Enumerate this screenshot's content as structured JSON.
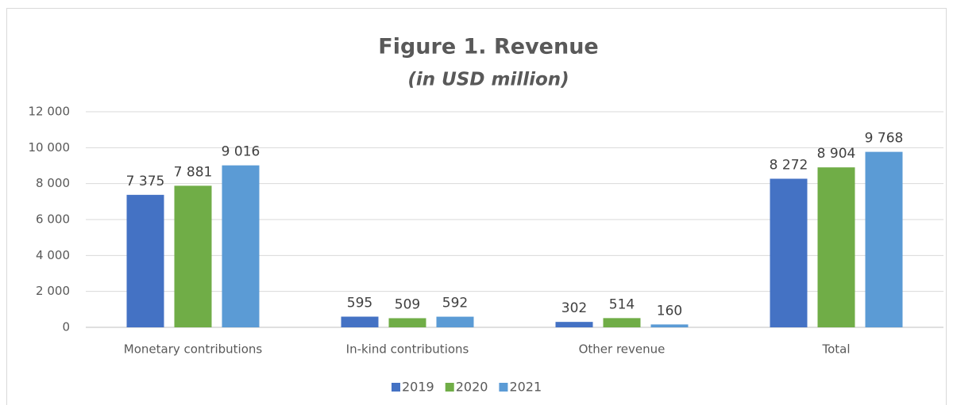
{
  "chart_data": {
    "type": "bar",
    "title": "Figure 1. Revenue",
    "subtitle": "(in USD million)",
    "categories": [
      "Monetary contributions",
      "In-kind contributions",
      "Other revenue",
      "Total"
    ],
    "series": [
      {
        "name": "2019",
        "color": "#4472c4",
        "values": [
          7375,
          595,
          302,
          8272
        ],
        "value_labels": [
          "7 375",
          "595",
          "302",
          "8 272"
        ]
      },
      {
        "name": "2020",
        "color": "#70ad47",
        "values": [
          7881,
          509,
          514,
          8904
        ],
        "value_labels": [
          "7 881",
          "509",
          "514",
          "8 904"
        ]
      },
      {
        "name": "2021",
        "color": "#5b9bd5",
        "values": [
          9016,
          592,
          160,
          9768
        ],
        "value_labels": [
          "9 016",
          "592",
          "160",
          "9 768"
        ]
      }
    ],
    "ylim": [
      0,
      12000
    ],
    "yticks": [
      0,
      {
        "value": 2000,
        "label": "2 000"
      },
      {
        "value": 4000,
        "label": "4 000"
      },
      {
        "value": 6000,
        "label": "6 000"
      },
      {
        "value": 8000,
        "label": "8 000"
      },
      {
        "value": 10000,
        "label": "10 000"
      },
      {
        "value": 12000,
        "label": "12 000"
      }
    ],
    "grid": true,
    "legend": "bottom"
  }
}
